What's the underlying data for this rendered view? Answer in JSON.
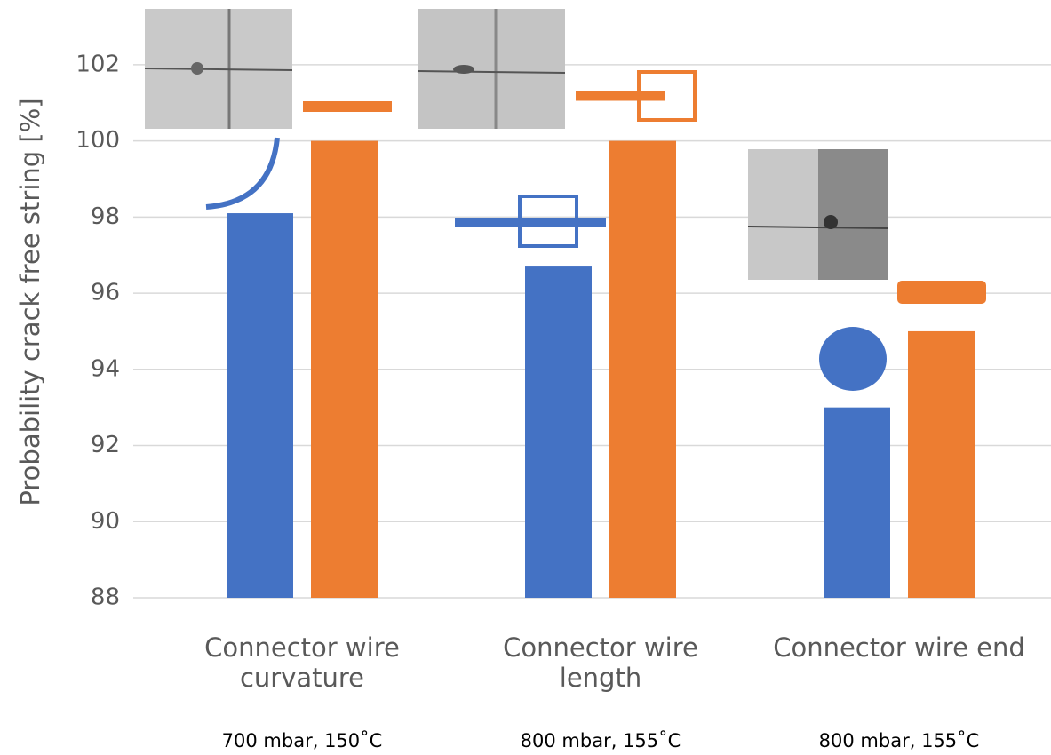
{
  "chart_data": {
    "type": "bar",
    "y_label": "Probability crack free string [%]",
    "categories": [
      "Connector wire curvature",
      "Connector wire length",
      "Connector wire end"
    ],
    "annotations": [
      "700 mbar, 150˚C",
      "800 mbar, 155˚C",
      "800 mbar, 155˚C"
    ],
    "series": [
      {
        "color": "#4472c4",
        "values": [
          98.1,
          96.7,
          93.0
        ]
      },
      {
        "color": "#ed7d31",
        "values": [
          100,
          100,
          95.0
        ]
      }
    ],
    "ylim": [
      88,
      103.7
    ],
    "yticks": [
      88,
      90,
      92,
      94,
      96,
      98,
      100,
      102
    ],
    "grid": true
  }
}
